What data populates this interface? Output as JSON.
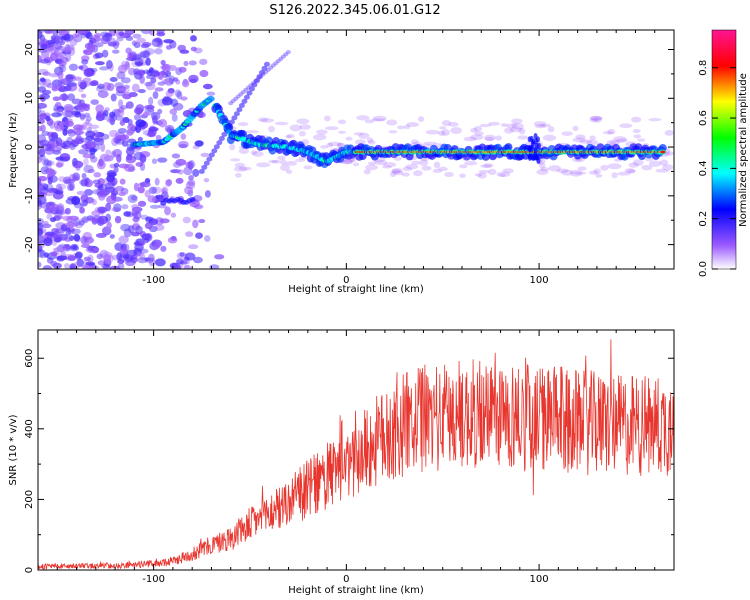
{
  "title": "S126.2022.345.06.01.G12",
  "chart_data": [
    {
      "type": "heatmap",
      "xlabel": "Height of straight line (km)",
      "ylabel": "Frequency (Hz)",
      "xlim": [
        -160,
        170
      ],
      "ylim": [
        -25,
        24
      ],
      "x_ticks": [
        -100,
        0,
        100
      ],
      "x_tick_labels": [
        "-100",
        "0",
        "100"
      ],
      "y_ticks": [
        -20,
        -10,
        0,
        10,
        20
      ],
      "y_tick_labels": [
        "-20",
        "-10",
        "0",
        "10",
        "20"
      ],
      "colorbar": {
        "label": "Normalized spectral amplitude",
        "range": [
          0,
          0.95
        ],
        "ticks": [
          0.0,
          0.2,
          0.4,
          0.6,
          0.8
        ],
        "tick_labels": [
          "0.0",
          "0.2",
          "0.4",
          "0.6",
          "0.8"
        ],
        "colormap": [
          "#ffffff",
          "#8a2be2",
          "#0000ff",
          "#00ffff",
          "#00ff00",
          "#ffff00",
          "#ff0000",
          "#ff1493"
        ]
      },
      "ridge": [
        {
          "x": -110,
          "y": 0.5
        },
        {
          "x": -95,
          "y": 1.0
        },
        {
          "x": -85,
          "y": 4.0
        },
        {
          "x": -75,
          "y": 8.5
        },
        {
          "x": -70,
          "y": 10.0
        },
        {
          "x": -60,
          "y": 2.5
        },
        {
          "x": -45,
          "y": 0.5
        },
        {
          "x": -30,
          "y": 0.0
        },
        {
          "x": -20,
          "y": -1.0
        },
        {
          "x": -10,
          "y": -3.0
        },
        {
          "x": 0,
          "y": -1.0
        },
        {
          "x": 10,
          "y": -1.0
        },
        {
          "x": 60,
          "y": -1.0
        },
        {
          "x": 100,
          "y": -1.0
        },
        {
          "x": 165,
          "y": -1.0
        }
      ]
    },
    {
      "type": "line",
      "xlabel": "Height of straight line (km)",
      "ylabel": "SNR (10 * v/v)",
      "xlim": [
        -160,
        170
      ],
      "ylim": [
        0,
        680
      ],
      "x_ticks": [
        -100,
        0,
        100
      ],
      "x_tick_labels": [
        "-100",
        "0",
        "100"
      ],
      "y_ticks": [
        0,
        200,
        400,
        600
      ],
      "y_tick_labels": [
        "0",
        "200",
        "400",
        "600"
      ],
      "color": "#e8362f",
      "envelope": {
        "x": [
          -160,
          -120,
          -100,
          -90,
          -80,
          -70,
          -60,
          -50,
          -40,
          -30,
          -20,
          -10,
          0,
          10,
          20,
          30,
          40,
          60,
          80,
          100,
          120,
          140,
          160,
          170
        ],
        "y": [
          10,
          12,
          18,
          25,
          45,
          70,
          90,
          130,
          160,
          190,
          230,
          260,
          300,
          340,
          380,
          410,
          430,
          440,
          440,
          430,
          420,
          410,
          410,
          410
        ]
      }
    }
  ]
}
